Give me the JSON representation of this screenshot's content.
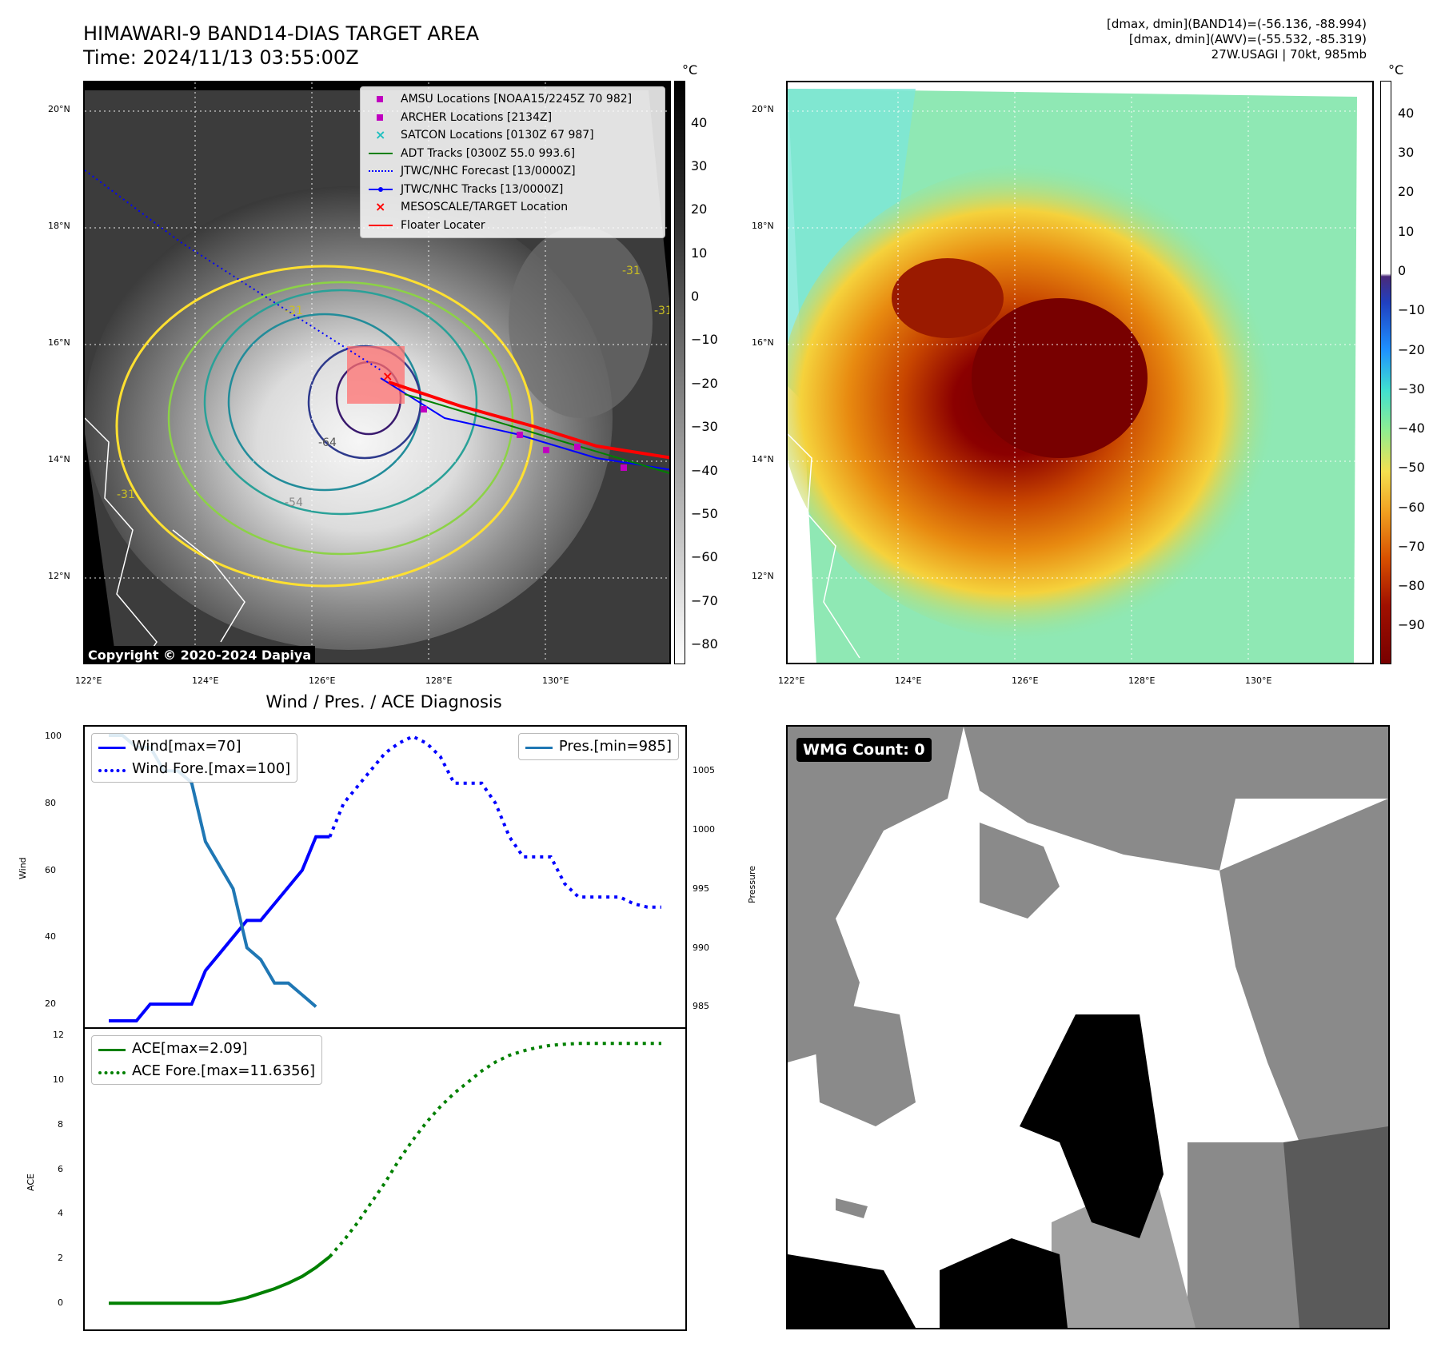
{
  "header": {
    "title_line1": "HIMAWARI-9 BAND14-DIAS TARGET AREA",
    "title_line2": "Time: 2024/11/13 03:55:00Z",
    "stat_line1": "[dmax, dmin](BAND14)=(-56.136, -88.994)",
    "stat_line2": "[dmax, dmin](AWV)=(-55.532, -85.319)",
    "stat_line3": "27W.USAGI | 70kt, 985mb"
  },
  "ir_panel": {
    "lat_labels": [
      "20°N",
      "18°N",
      "16°N",
      "14°N",
      "12°N"
    ],
    "lon_labels": [
      "122°E",
      "124°E",
      "126°E",
      "128°E",
      "130°E"
    ],
    "colorbar_unit": "°C",
    "colorbar_ticks": [
      "40",
      "30",
      "20",
      "10",
      "0",
      "−10",
      "−20",
      "−30",
      "−40",
      "−50",
      "−60",
      "−70",
      "−80"
    ],
    "copyright": "Copyright © 2020-2024 Dapiya",
    "contour_labels": [
      "-64",
      "-54",
      "-31",
      "-31",
      "-31",
      "-31"
    ],
    "legend": [
      {
        "label": "AMSU Locations [NOAA15/2245Z 70 982]",
        "color": "#c000c0",
        "icon": "square-marker"
      },
      {
        "label": "ARCHER Locations [2134Z]",
        "color": "#c000c0",
        "icon": "square-marker"
      },
      {
        "label": "SATCON Locations [0130Z 67 987]",
        "color": "#20c0c0",
        "icon": "x-marker"
      },
      {
        "label": "ADT Tracks [0300Z 55.0 993.6]",
        "color": "#008000",
        "icon": "solid-line"
      },
      {
        "label": "JTWC/NHC Forecast [13/0000Z]",
        "color": "#0000ff",
        "icon": "dotted-line"
      },
      {
        "label": "JTWC/NHC Tracks [13/0000Z]",
        "color": "#0000ff",
        "icon": "line-dot"
      },
      {
        "label": "MESOSCALE/TARGET Location",
        "color": "#ff0000",
        "icon": "x-marker"
      },
      {
        "label": "Floater Locater",
        "color": "#ff0000",
        "icon": "solid-line"
      }
    ]
  },
  "awv_panel": {
    "lat_labels": [
      "20°N",
      "18°N",
      "16°N",
      "14°N",
      "12°N"
    ],
    "lon_labels": [
      "122°E",
      "124°E",
      "126°E",
      "128°E",
      "130°E"
    ],
    "colorbar_unit": "°C",
    "colorbar_ticks": [
      "40",
      "30",
      "20",
      "10",
      "0",
      "−10",
      "−20",
      "−30",
      "−40",
      "−50",
      "−60",
      "−70",
      "−80",
      "−90"
    ]
  },
  "wmg_panel": {
    "badge": "WMG Count: 0"
  },
  "chart_data": [
    {
      "type": "line",
      "title": "Wind / Pres. / ACE Diagnosis",
      "ylabel": "Wind",
      "y2label": "Pressure",
      "ylim": [
        15,
        101
      ],
      "y2lim": [
        983.8,
        1008.2
      ],
      "yticks": [
        "100",
        "80",
        "60",
        "40",
        "20"
      ],
      "y2ticks": [
        "1005",
        "1000",
        "995",
        "990",
        "985"
      ],
      "x": [
        0,
        1,
        2,
        3,
        4,
        5,
        6,
        7,
        8,
        9,
        10,
        11,
        12,
        13,
        14,
        15,
        16,
        17,
        18,
        19,
        20,
        21,
        22,
        23,
        24,
        25,
        26,
        27,
        28,
        29,
        30,
        31,
        32,
        33,
        34,
        35,
        36,
        37,
        38,
        39,
        40
      ],
      "series": [
        {
          "name": "Wind[max=70]",
          "axis": "left",
          "style": "solid",
          "color": "#0000ff",
          "x": [
            0,
            2,
            3,
            4,
            5,
            6,
            7,
            8,
            9,
            10,
            11,
            12,
            13,
            14,
            15,
            16
          ],
          "values": [
            15,
            15,
            20,
            20,
            20,
            20,
            30,
            35,
            40,
            45,
            45,
            50,
            55,
            60,
            70,
            70
          ]
        },
        {
          "name": "Wind Fore.[max=100]",
          "axis": "left",
          "style": "dotted",
          "color": "#0000ff",
          "x": [
            16,
            17,
            18,
            19,
            20,
            21,
            22,
            23,
            24,
            25,
            26,
            27,
            28,
            29,
            30,
            31,
            32,
            33,
            34,
            35,
            36,
            37,
            38,
            39,
            40
          ],
          "values": [
            70,
            80,
            85,
            90,
            95,
            98,
            100,
            98,
            94,
            86,
            86,
            86,
            80,
            70,
            64,
            64,
            64,
            56,
            52,
            52,
            52,
            52,
            50,
            49,
            49
          ]
        },
        {
          "name": "Pres.[min=985]",
          "axis": "right",
          "style": "solid",
          "color": "#1f77b4",
          "x": [
            0,
            1,
            2,
            3,
            4,
            5,
            6,
            7,
            8,
            9,
            10,
            11,
            12,
            13,
            14,
            15
          ],
          "values": [
            1008,
            1008,
            1007,
            1007,
            1005,
            1005,
            1004,
            999,
            997,
            995,
            990,
            989,
            987,
            987,
            986,
            985
          ]
        }
      ]
    },
    {
      "type": "line",
      "ylabel": "ACE",
      "ylim": [
        -0.6,
        12
      ],
      "yticks": [
        "12",
        "10",
        "8",
        "6",
        "4",
        "2",
        "0"
      ],
      "series": [
        {
          "name": "ACE[max=2.09]",
          "style": "solid",
          "color": "#008000",
          "x": [
            0,
            2,
            4,
            6,
            8,
            9,
            10,
            11,
            12,
            13,
            14,
            15,
            16
          ],
          "values": [
            0,
            0,
            0,
            0,
            0,
            0.1,
            0.25,
            0.45,
            0.65,
            0.9,
            1.2,
            1.6,
            2.09
          ]
        },
        {
          "name": "ACE Fore.[max=11.6356]",
          "style": "dotted",
          "color": "#008000",
          "x": [
            16,
            17,
            18,
            19,
            20,
            21,
            22,
            23,
            24,
            25,
            26,
            27,
            28,
            29,
            30,
            31,
            32,
            33,
            34,
            35,
            36,
            37,
            38,
            39,
            40
          ],
          "values": [
            2.09,
            2.8,
            3.6,
            4.5,
            5.4,
            6.4,
            7.3,
            8.1,
            8.8,
            9.4,
            9.9,
            10.4,
            10.8,
            11.1,
            11.3,
            11.45,
            11.55,
            11.6,
            11.63,
            11.635,
            11.6356,
            11.6356,
            11.6356,
            11.6356,
            11.6356
          ]
        }
      ]
    }
  ]
}
